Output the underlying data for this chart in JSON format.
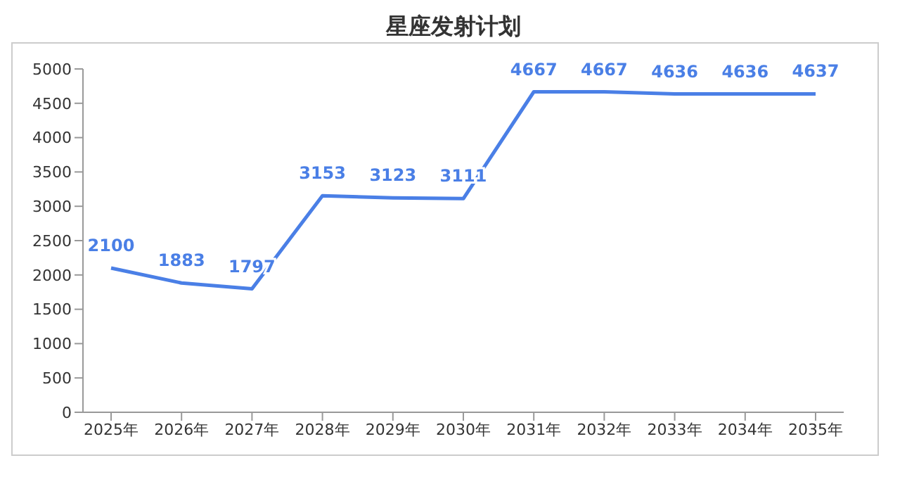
{
  "chart_data": {
    "type": "line",
    "title": "星座发射计划",
    "categories": [
      "2025年",
      "2026年",
      "2027年",
      "2028年",
      "2029年",
      "2030年",
      "2031年",
      "2032年",
      "2033年",
      "2034年",
      "2035年"
    ],
    "series": [
      {
        "color": "#4a7fe6",
        "values": [
          2100,
          1883,
          1797,
          3153,
          3123,
          3111,
          4667,
          4667,
          4636,
          4636,
          4637
        ]
      }
    ],
    "ylim": [
      0,
      5000
    ],
    "yticks": [
      0,
      500,
      1000,
      1500,
      2000,
      2500,
      3000,
      3500,
      4000,
      4500,
      5000
    ],
    "data_labels": true,
    "marker": "none",
    "line_style": "solid",
    "legend": false
  }
}
